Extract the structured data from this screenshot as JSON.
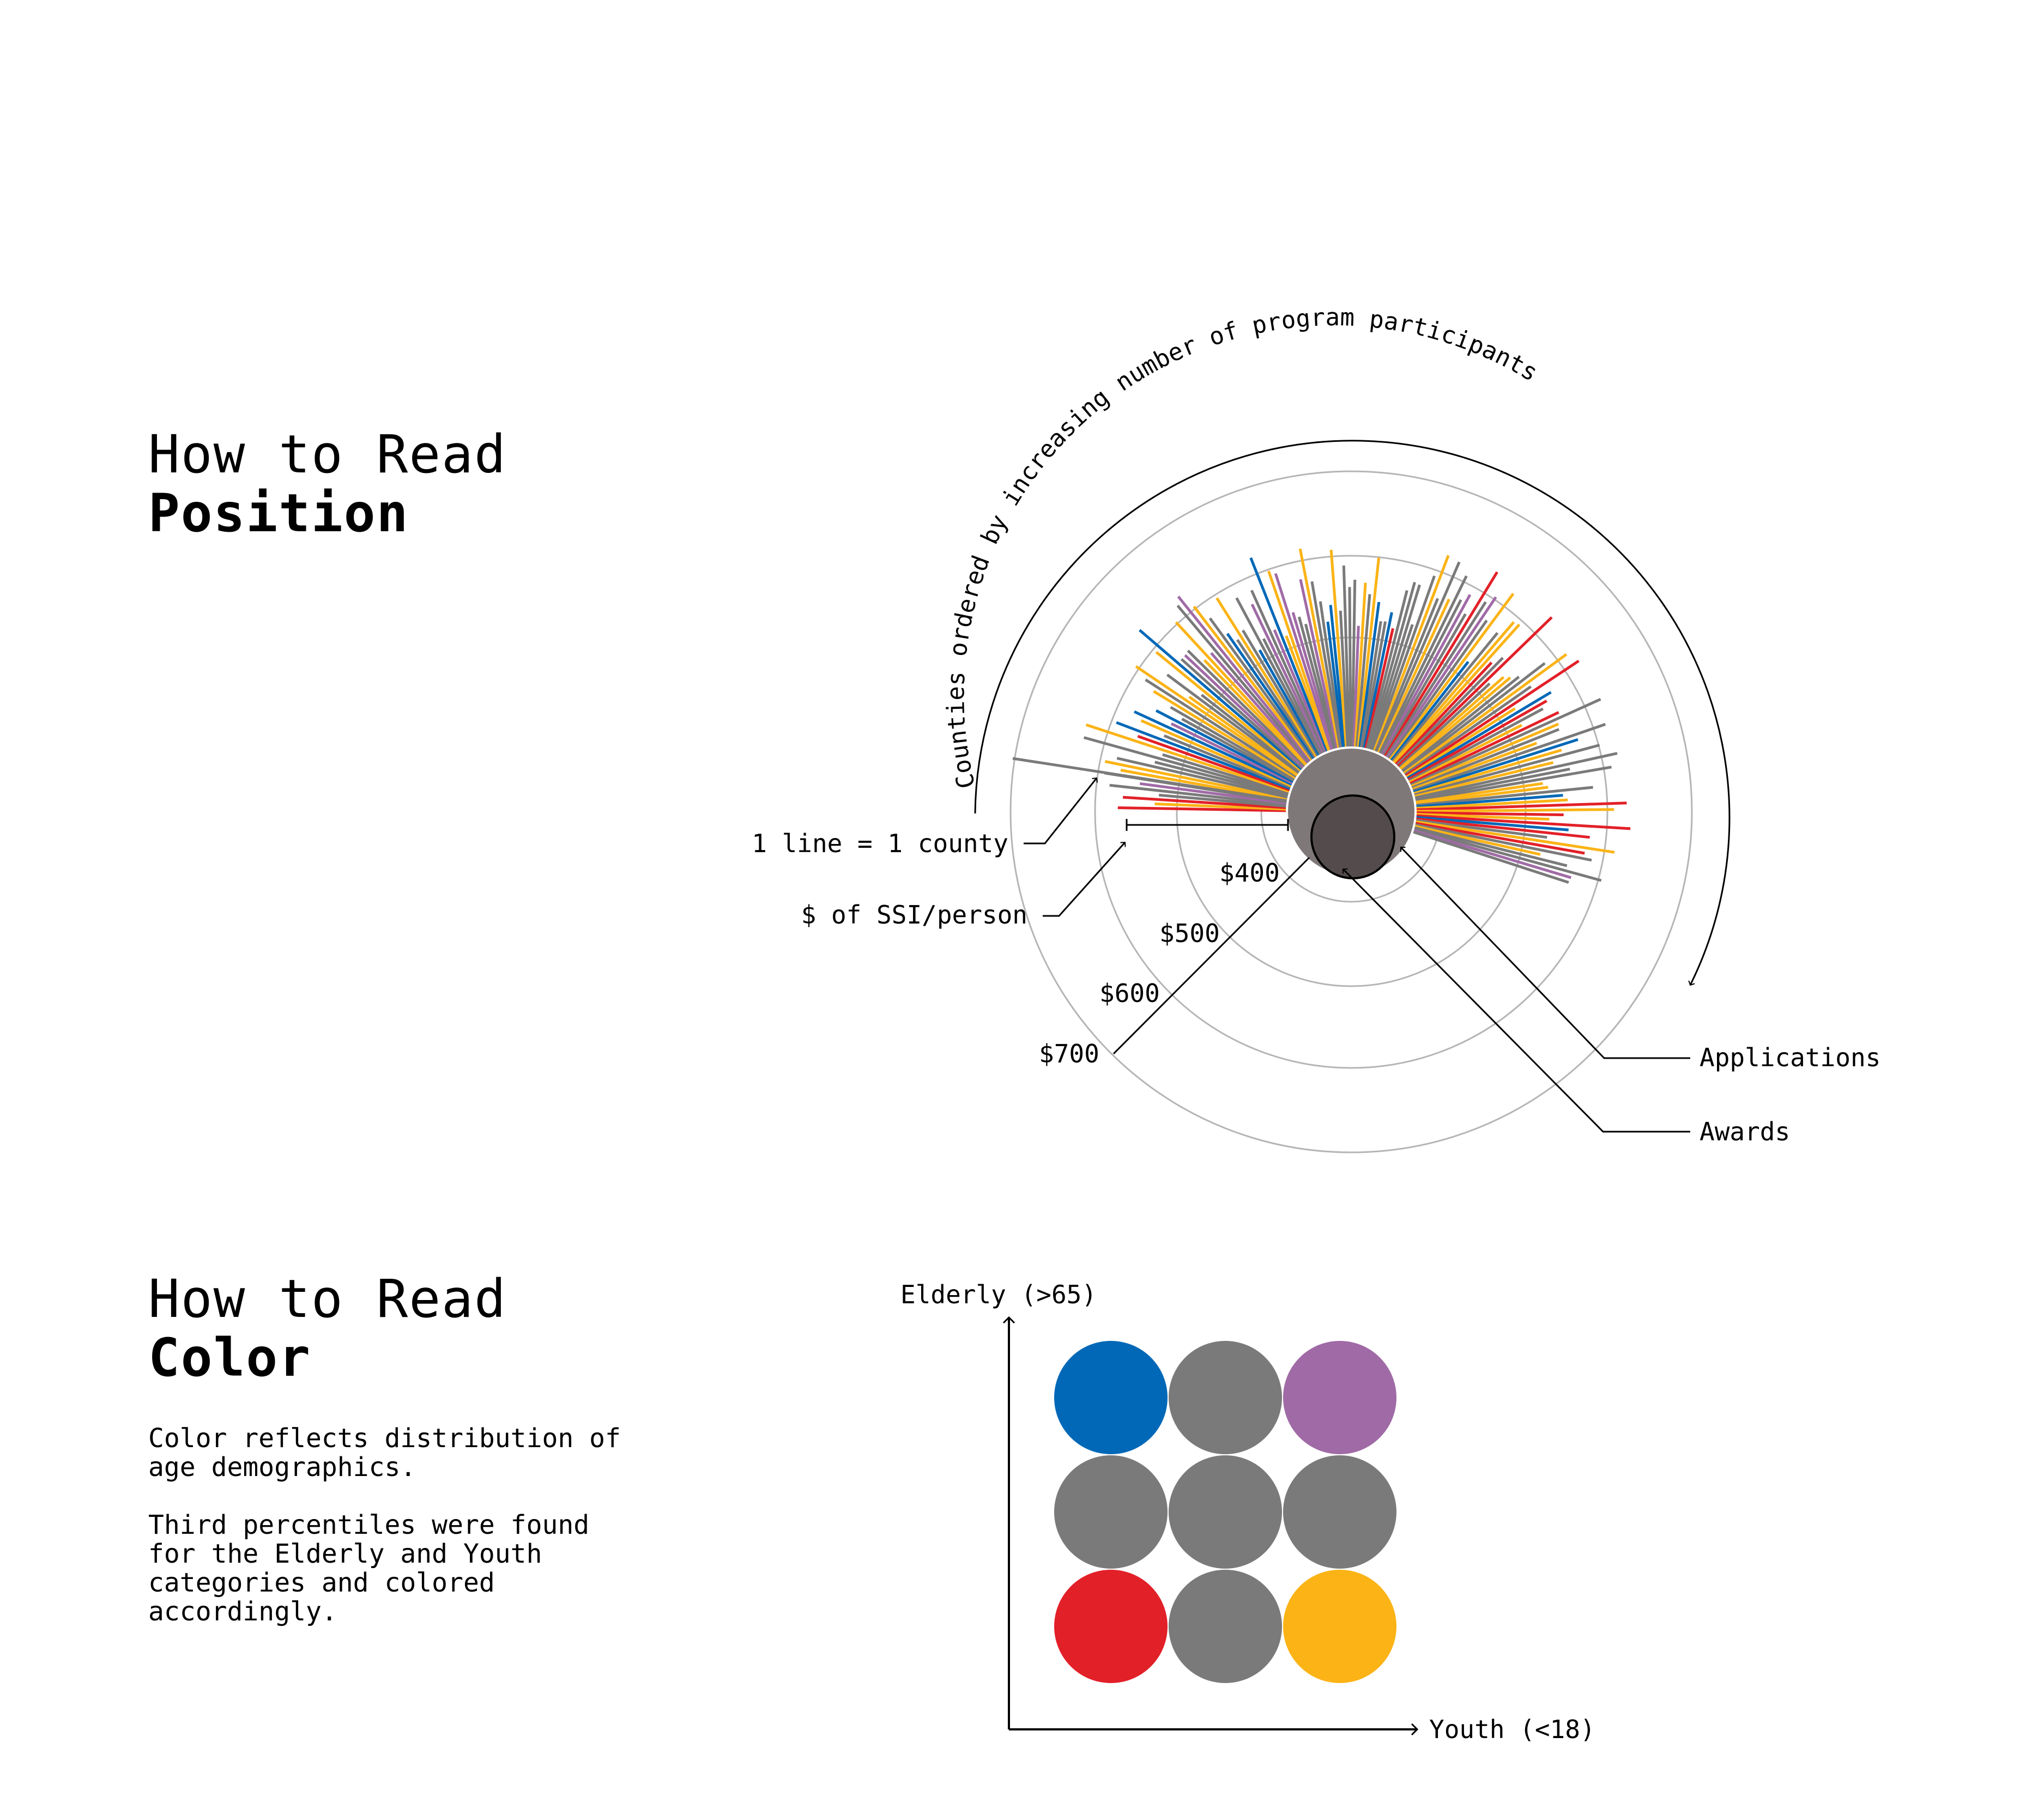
{
  "position_section": {
    "heading_light": "How to Read",
    "heading_bold": "Position"
  },
  "color_section": {
    "heading_light": "How to Read",
    "heading_bold": "Color",
    "paragraph1": "Color reflects distribution of age demographics.",
    "paragraph2": "Third percentiles were found for the Elderly and Youth categories and colored accordingly."
  },
  "diagram": {
    "arc_caption": "Counties ordered by increasing number of program participants",
    "ring_labels": [
      "$400",
      "$500",
      "$600",
      "$700"
    ],
    "annotations": {
      "one_line": "1 line = 1 county",
      "ssi": "$ of SSI/person",
      "applications": "Applications",
      "awards": "Awards"
    }
  },
  "color_legend": {
    "y_axis_label": "Elderly (>65)",
    "x_axis_label": "Youth (<18)",
    "grid": [
      [
        "#0068b7",
        "#7a7a7a",
        "#a06aa6"
      ],
      [
        "#7a7a7a",
        "#7a7a7a",
        "#7a7a7a"
      ],
      [
        "#e22028",
        "#7a7a7a",
        "#fbb316"
      ]
    ]
  },
  "colors": {
    "blue": "#0068b7",
    "gray": "#7a7a7a",
    "purple": "#a06aa6",
    "red": "#e22028",
    "yellow": "#fbb316",
    "applications_disc": "#7f7878",
    "awards_disc": "#544c4c"
  }
}
